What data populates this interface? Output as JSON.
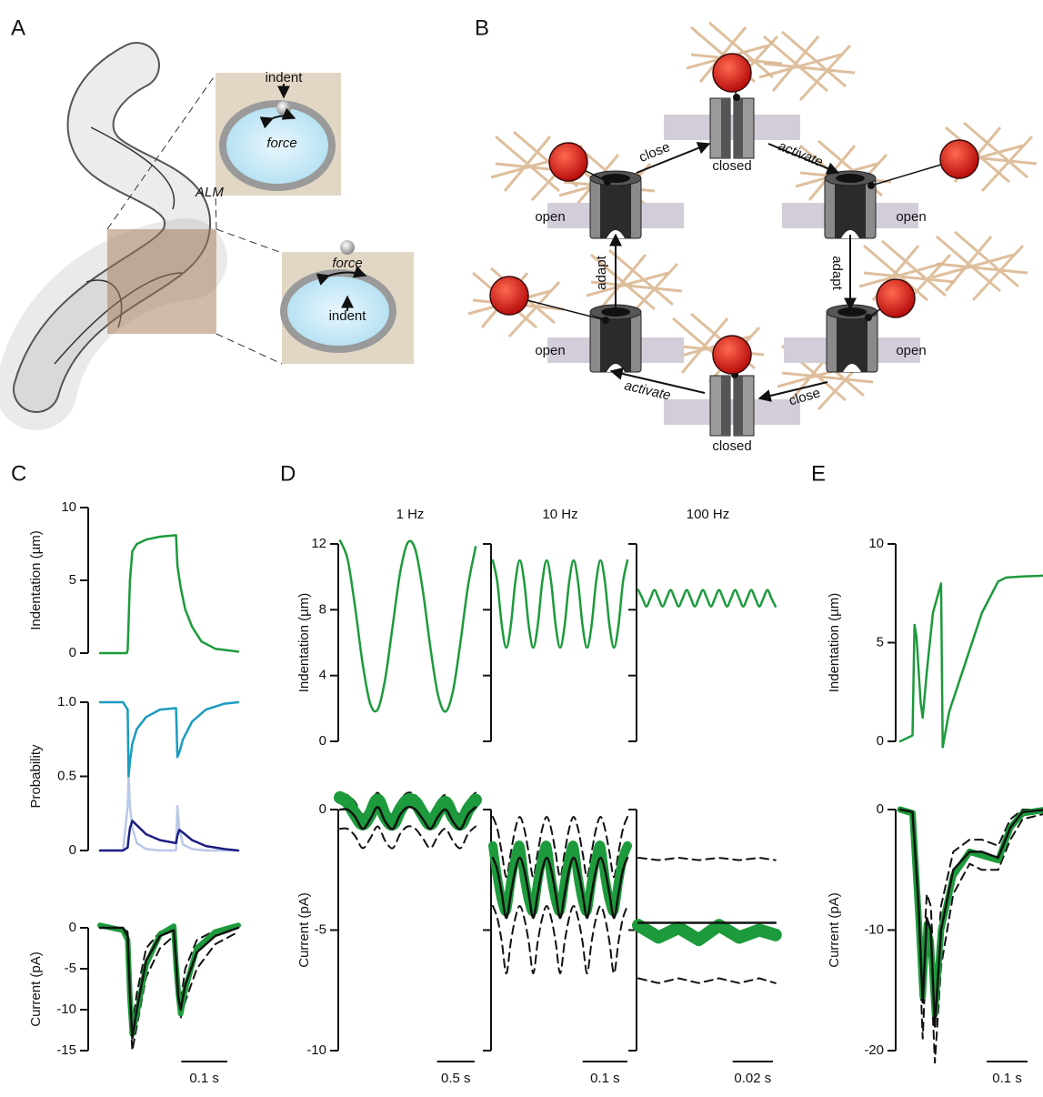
{
  "panel_labels": [
    "A",
    "B",
    "C",
    "D",
    "E"
  ],
  "panel_a": {
    "labels": [
      "indent",
      "force",
      "ALM",
      "force",
      "indent"
    ]
  },
  "panel_b": {
    "states": [
      "closed",
      "open",
      "open",
      "open",
      "open",
      "closed"
    ],
    "transitions": [
      "close",
      "activate",
      "adapt",
      "adapt",
      "activate",
      "close"
    ]
  },
  "chart_data": [
    {
      "type": "line",
      "ylabel": "Indentation (µm)",
      "ylim": [
        0,
        10
      ],
      "yticks": [
        0,
        5,
        10
      ],
      "xlim": [
        0,
        0.3
      ],
      "x": [
        0,
        0.05,
        0.058,
        0.06,
        0.065,
        0.07,
        0.08,
        0.1,
        0.13,
        0.165,
        0.168,
        0.175,
        0.185,
        0.2,
        0.22,
        0.25,
        0.3
      ],
      "series": [
        {
          "color": "#1d9a3c",
          "line_width": 2.5,
          "values": [
            0,
            0,
            0,
            0.2,
            5,
            7,
            7.5,
            7.8,
            8,
            8.1,
            6,
            4.5,
            3,
            1.8,
            0.8,
            0.3,
            0.1
          ]
        }
      ]
    },
    {
      "type": "line",
      "ylabel": "Probability",
      "ylim": [
        0,
        1
      ],
      "yticks": [
        0,
        0.5,
        {
          "value": 1,
          "label": "1.0"
        }
      ],
      "xlim": [
        0,
        0.3
      ],
      "x": [
        0,
        0.05,
        0.06,
        0.062,
        0.065,
        0.07,
        0.08,
        0.1,
        0.13,
        0.165,
        0.168,
        0.172,
        0.18,
        0.2,
        0.23,
        0.27,
        0.3
      ],
      "series": [
        {
          "color": "#b9c9e8",
          "line_width": 2.5,
          "values": [
            0,
            0,
            0.3,
            0.5,
            0.3,
            0.15,
            0.05,
            0.01,
            0,
            0,
            0.3,
            0.15,
            0.04,
            0.01,
            0,
            0,
            0
          ]
        },
        {
          "color": "#1a9bbf",
          "line_width": 2.5,
          "values": [
            1,
            1,
            0.95,
            0.5,
            0.6,
            0.72,
            0.82,
            0.9,
            0.95,
            0.96,
            0.63,
            0.66,
            0.75,
            0.87,
            0.95,
            0.99,
            1
          ]
        },
        {
          "color": "#1d1d80",
          "line_width": 2.5,
          "values": [
            0,
            0,
            0.02,
            0.08,
            0.15,
            0.2,
            0.17,
            0.11,
            0.07,
            0.05,
            0.1,
            0.14,
            0.12,
            0.07,
            0.03,
            0.01,
            0
          ]
        }
      ]
    },
    {
      "type": "line",
      "ylabel": "Current (pA)",
      "ylim": [
        -15,
        0
      ],
      "yticks": [
        0,
        -5,
        -10,
        -15
      ],
      "xlim": [
        0,
        0.3
      ],
      "scalebar": {
        "value": 0.1,
        "label": "0.1 s"
      },
      "x": [
        0,
        0.05,
        0.06,
        0.065,
        0.07,
        0.08,
        0.1,
        0.13,
        0.16,
        0.165,
        0.17,
        0.175,
        0.185,
        0.21,
        0.25,
        0.3
      ],
      "series": [
        {
          "color": "#111111",
          "dash": true,
          "line_width": 2,
          "values": [
            0,
            0,
            -1.5,
            -10,
            -15,
            -12,
            -6,
            -2.5,
            -1,
            -5,
            -9.5,
            -11,
            -9,
            -5,
            -2,
            -0.5
          ]
        },
        {
          "color": "#111111",
          "dash": true,
          "line_width": 2,
          "values": [
            0,
            0,
            -0.5,
            -6,
            -12,
            -8,
            -2.5,
            -0.5,
            0,
            -3,
            -7,
            -9,
            -5,
            -1.5,
            -0.3,
            0
          ]
        },
        {
          "color": "#1d9a3c",
          "line_width": 6,
          "values": [
            0.3,
            -0.3,
            -1.5,
            -8.5,
            -13,
            -10.5,
            -4.5,
            -0.8,
            0.2,
            -4.5,
            -8,
            -10.5,
            -7.5,
            -2.5,
            -0.5,
            0.3
          ]
        },
        {
          "color": "#111111",
          "line_width": 2.5,
          "values": [
            0,
            0,
            -1,
            -8,
            -13.5,
            -10,
            -4,
            -1,
            -0.3,
            -4,
            -8.5,
            -10,
            -7,
            -3,
            -1,
            0
          ]
        }
      ]
    },
    {
      "type": "line",
      "title": "1 Hz",
      "ylabel": "Indentation (µm)",
      "ylim": [
        0,
        12
      ],
      "yticks": [
        0,
        4,
        8,
        12
      ],
      "xlim": [
        0,
        1.86
      ],
      "x": [
        0,
        0.1,
        0.2,
        0.3,
        0.4,
        0.5,
        0.6,
        0.7,
        0.8,
        0.9,
        1,
        1.1,
        1.2,
        1.3,
        1.4,
        1.5,
        1.6,
        1.7,
        1.8
      ],
      "series": [
        {
          "color": "#1d9a3c",
          "line_width": 2.5,
          "smooth": true,
          "values": [
            12.2,
            11.06,
            8.13,
            4.71,
            2.29,
            1.94,
            3.82,
            7.09,
            10.32,
            12.09,
            11.64,
            9.13,
            5.67,
            2.84,
            1.81,
            3.08,
            6.07,
            9.48,
            11.81
          ]
        }
      ]
    },
    {
      "type": "line",
      "title": "10 Hz",
      "ylim": [
        0,
        12
      ],
      "yticks": [
        0,
        4,
        8,
        12
      ],
      "tick_labels": false,
      "xlim": [
        0,
        0.3
      ],
      "x": [
        0,
        0.01,
        0.02,
        0.03,
        0.04,
        0.05,
        0.06,
        0.07,
        0.08,
        0.09,
        0.1,
        0.11,
        0.12,
        0.13,
        0.14,
        0.15,
        0.16,
        0.17,
        0.18,
        0.19,
        0.2,
        0.21,
        0.22,
        0.23,
        0.24,
        0.25,
        0.26,
        0.27,
        0.28,
        0.29,
        0.3
      ],
      "series": [
        {
          "color": "#1d9a3c",
          "line_width": 2.5,
          "smooth": true,
          "values": [
            11,
            9.68,
            7.03,
            5.7,
            7.03,
            9.68,
            11,
            9.68,
            7.03,
            5.7,
            7.03,
            9.68,
            11,
            9.68,
            7.03,
            5.7,
            7.03,
            9.68,
            11,
            9.68,
            7.03,
            5.7,
            7.03,
            9.68,
            11,
            9.68,
            7.03,
            5.7,
            7.03,
            9.68,
            11
          ]
        }
      ]
    },
    {
      "type": "line",
      "title": "100 Hz",
      "ylim": [
        0,
        12
      ],
      "yticks": [
        0,
        4,
        8,
        12
      ],
      "tick_labels": false,
      "xlim": [
        0,
        0.069
      ],
      "x": [
        0,
        0.002,
        0.004,
        0.006,
        0.008,
        0.01,
        0.012,
        0.014,
        0.016,
        0.018,
        0.02,
        0.022,
        0.024,
        0.026,
        0.028,
        0.03,
        0.032,
        0.034,
        0.036,
        0.038,
        0.04,
        0.042,
        0.044,
        0.046,
        0.048,
        0.05,
        0.052,
        0.054,
        0.056,
        0.058,
        0.06,
        0.062,
        0.064,
        0.066,
        0.068
      ],
      "series": [
        {
          "color": "#1d9a3c",
          "line_width": 2.5,
          "smooth": true,
          "values": [
            9.2,
            8.7,
            8.2,
            8.7,
            9.2,
            8.7,
            8.2,
            8.7,
            9.2,
            8.7,
            8.2,
            8.7,
            9.2,
            8.7,
            8.2,
            8.7,
            9.2,
            8.7,
            8.2,
            8.7,
            9.2,
            8.7,
            8.2,
            8.7,
            9.2,
            8.7,
            8.2,
            8.7,
            9.2,
            8.7,
            8.2,
            8.7,
            9.2,
            8.7,
            8.2
          ]
        }
      ]
    },
    {
      "type": "line",
      "ylabel": "Current (pA)",
      "ylim": [
        -10,
        0
      ],
      "yticks": [
        0,
        -5,
        -10
      ],
      "xlim": [
        0,
        1.86
      ],
      "scalebar": {
        "value": 0.5,
        "label": "0.5 s"
      },
      "x": [
        0,
        0.1,
        0.2,
        0.3,
        0.4,
        0.5,
        0.6,
        0.7,
        0.8,
        0.9,
        1,
        1.1,
        1.2,
        1.3,
        1.4,
        1.5,
        1.6,
        1.7,
        1.8
      ],
      "series": [
        {
          "color": "#111111",
          "dash": true,
          "line_width": 2,
          "smooth": true,
          "values": [
            -0.8,
            -0.8,
            -1.1,
            -1.6,
            -1.2,
            -0.7,
            -1.3,
            -1.6,
            -1,
            -0.7,
            -0.8,
            -1.2,
            -1.6,
            -1.1,
            -0.8,
            -1.3,
            -1.6,
            -1,
            -0.7
          ]
        },
        {
          "color": "#111111",
          "dash": true,
          "line_width": 2,
          "smooth": true,
          "values": [
            0.6,
            0.6,
            0.3,
            -0.2,
            0.2,
            0.7,
            0.1,
            -0.2,
            0.4,
            0.7,
            0.6,
            0.2,
            -0.2,
            0.3,
            0.6,
            0.1,
            -0.2,
            0.4,
            0.7
          ]
        },
        {
          "color": "#1d9a3c",
          "line_width": 14,
          "smooth": true,
          "values": [
            0.5,
            0.3,
            -0.2,
            -0.6,
            -0.2,
            0.4,
            -0.3,
            -0.6,
            0,
            0.4,
            0.3,
            -0.2,
            -0.6,
            -0.1,
            0.3,
            -0.3,
            -0.6,
            0,
            0.4
          ]
        },
        {
          "color": "#111111",
          "line_width": 2.5,
          "smooth": true,
          "values": [
            0,
            0,
            -0.3,
            -0.8,
            -0.4,
            0.1,
            -0.5,
            -0.8,
            -0.2,
            0.1,
            0,
            -0.4,
            -0.8,
            -0.3,
            0,
            -0.5,
            -0.8,
            -0.2,
            0.1
          ]
        }
      ]
    },
    {
      "type": "line",
      "ylim": [
        -10,
        0
      ],
      "yticks": [
        0,
        -5,
        -10
      ],
      "tick_labels": false,
      "xlim": [
        0,
        0.3
      ],
      "scalebar": {
        "value": 0.1,
        "label": "0.1 s"
      },
      "x": [
        0,
        0.01,
        0.02,
        0.03,
        0.04,
        0.05,
        0.06,
        0.07,
        0.08,
        0.09,
        0.1,
        0.11,
        0.12,
        0.13,
        0.14,
        0.15,
        0.16,
        0.17,
        0.18,
        0.19,
        0.2,
        0.21,
        0.22,
        0.23,
        0.24,
        0.25,
        0.26,
        0.27,
        0.28,
        0.29,
        0.3
      ],
      "series": [
        {
          "color": "#111111",
          "dash": true,
          "line_width": 2,
          "smooth": true,
          "values": [
            -4,
            -4.5,
            -5.5,
            -6.8,
            -5.5,
            -4.5,
            -4,
            -4.5,
            -5.5,
            -6.8,
            -5.5,
            -4.5,
            -4,
            -4.5,
            -5.5,
            -6.8,
            -5.5,
            -4.5,
            -4,
            -4.5,
            -5.5,
            -6.8,
            -5.5,
            -4.5,
            -4,
            -4.5,
            -5.5,
            -6.8,
            -5.5,
            -4.5,
            -4
          ]
        },
        {
          "color": "#111111",
          "dash": true,
          "line_width": 2,
          "smooth": true,
          "values": [
            -0.3,
            -0.8,
            -1.8,
            -2.8,
            -1.8,
            -0.8,
            -0.3,
            -0.8,
            -1.8,
            -2.8,
            -1.8,
            -0.8,
            -0.3,
            -0.8,
            -1.8,
            -2.8,
            -1.8,
            -0.8,
            -0.3,
            -0.8,
            -1.8,
            -2.8,
            -1.8,
            -0.8,
            -0.3,
            -0.8,
            -1.8,
            -2.8,
            -1.8,
            -0.8,
            -0.3
          ]
        },
        {
          "color": "#1d9a3c",
          "line_width": 10,
          "smooth": true,
          "values": [
            -1.5,
            -2.8,
            -3.8,
            -4.2,
            -3,
            -2,
            -1.5,
            -2.8,
            -3.8,
            -4.2,
            -3,
            -2,
            -1.5,
            -2.8,
            -3.8,
            -4.2,
            -3,
            -2,
            -1.5,
            -2.8,
            -3.8,
            -4.2,
            -3,
            -2,
            -1.5,
            -2.8,
            -3.8,
            -4.2,
            -3,
            -2,
            -1.5
          ]
        },
        {
          "color": "#111111",
          "line_width": 2.5,
          "smooth": true,
          "values": [
            -2,
            -2.5,
            -3.5,
            -4.5,
            -3.5,
            -2.5,
            -2,
            -2.5,
            -3.5,
            -4.5,
            -3.5,
            -2.5,
            -2,
            -2.5,
            -3.5,
            -4.5,
            -3.5,
            -2.5,
            -2,
            -2.5,
            -3.5,
            -4.5,
            -3.5,
            -2.5,
            -2,
            -2.5,
            -3.5,
            -4.5,
            -3.5,
            -2.5,
            -2
          ]
        }
      ]
    },
    {
      "type": "line",
      "ylim": [
        -10,
        0
      ],
      "yticks": [
        0,
        -5,
        -10
      ],
      "tick_labels": false,
      "xlim": [
        0,
        0.069
      ],
      "scalebar": {
        "value": 0.02,
        "label": "0.02 s"
      },
      "x": [
        0,
        0.01,
        0.02,
        0.03,
        0.04,
        0.05,
        0.06,
        0.068
      ],
      "series": [
        {
          "color": "#111111",
          "dash": true,
          "line_width": 2,
          "values": [
            -7,
            -7.2,
            -7,
            -7.2,
            -7,
            -7.2,
            -7,
            -7.2
          ]
        },
        {
          "color": "#111111",
          "dash": true,
          "line_width": 2,
          "values": [
            -2,
            -2.1,
            -2,
            -2.1,
            -2,
            -2.1,
            -2,
            -2.1
          ]
        },
        {
          "color": "#1d9a3c",
          "line_width": 14,
          "values": [
            -4.8,
            -5.3,
            -4.9,
            -5.4,
            -4.8,
            -5.3,
            -5,
            -5.2
          ]
        },
        {
          "color": "#111111",
          "line_width": 2.5,
          "values": [
            -4.7,
            -4.7,
            -4.7,
            -4.7,
            -4.7,
            -4.7,
            -4.7,
            -4.7
          ]
        }
      ]
    },
    {
      "type": "line",
      "ylabel": "Indentation (µm)",
      "ylim": [
        0,
        10
      ],
      "yticks": [
        0,
        5,
        10
      ],
      "xlim": [
        0,
        0.35
      ],
      "x": [
        0,
        0.03,
        0.035,
        0.04,
        0.05,
        0.055,
        0.065,
        0.08,
        0.1,
        0.104,
        0.12,
        0.16,
        0.2,
        0.24,
        0.26,
        0.3,
        0.36
      ],
      "series": [
        {
          "color": "#1d9a3c",
          "line_width": 2.5,
          "values": [
            0,
            0.3,
            5.9,
            5.3,
            2,
            1.2,
            3.5,
            6.5,
            8,
            -0.3,
            1.5,
            4,
            6.5,
            8.1,
            8.3,
            8.35,
            8.4
          ]
        }
      ]
    },
    {
      "type": "line",
      "ylabel": "Current (pA)",
      "ylim": [
        -20,
        0
      ],
      "yticks": [
        0,
        -10,
        -20
      ],
      "xlim": [
        0,
        0.35
      ],
      "scalebar": {
        "value": 0.1,
        "label": "0.1 s"
      },
      "x": [
        0,
        0.03,
        0.045,
        0.055,
        0.065,
        0.075,
        0.085,
        0.1,
        0.13,
        0.17,
        0.2,
        0.24,
        0.27,
        0.3,
        0.36
      ],
      "series": [
        {
          "color": "#111111",
          "dash": true,
          "line_width": 2,
          "values": [
            0,
            -0.4,
            -10,
            -19,
            -11,
            -13,
            -21,
            -13,
            -7,
            -4.5,
            -5,
            -5,
            -2.5,
            -0.8,
            -0.3
          ]
        },
        {
          "color": "#111111",
          "dash": true,
          "line_width": 2,
          "values": [
            0,
            0,
            -6,
            -13,
            -7,
            -8,
            -15,
            -8,
            -3.5,
            -2.5,
            -2.5,
            -3,
            -0.8,
            0,
            0
          ]
        },
        {
          "color": "#1d9a3c",
          "line_width": 7,
          "values": [
            0,
            -0.3,
            -9,
            -15.5,
            -9.5,
            -11,
            -17,
            -10,
            -5.5,
            -3.5,
            -3.8,
            -4.2,
            -1.5,
            -0.3,
            0
          ]
        },
        {
          "color": "#111111",
          "line_width": 2.5,
          "values": [
            0,
            -0.2,
            -8,
            -16,
            -9,
            -10,
            -18,
            -10,
            -5,
            -3.5,
            -3.5,
            -4,
            -1.5,
            -0.2,
            0
          ]
        }
      ]
    }
  ]
}
